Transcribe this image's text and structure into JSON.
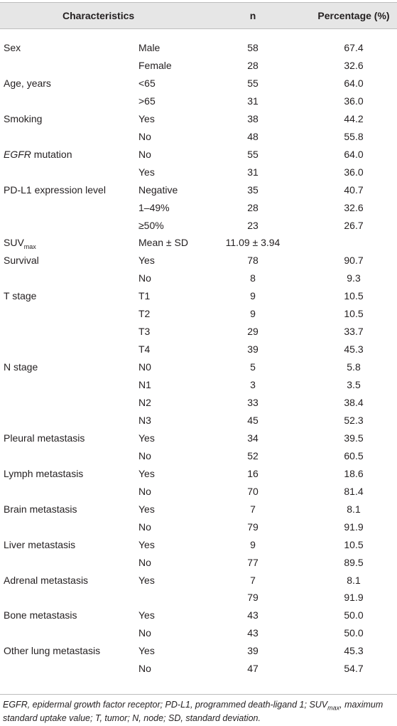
{
  "table": {
    "header": [
      "Characteristics",
      "n",
      "Percentage (%)"
    ],
    "rows": [
      {
        "characteristic": "Sex",
        "group": "Male",
        "n": "58",
        "pct": "67.4"
      },
      {
        "group": "Female",
        "n": "28",
        "pct": "32.6"
      },
      {
        "characteristic": "Age, years",
        "group": "<65",
        "n": "55",
        "pct": "64.0"
      },
      {
        "group": ">65",
        "n": "31",
        "pct": "36.0"
      },
      {
        "characteristic": "Smoking",
        "group": "Yes",
        "n": "38",
        "pct": "44.2"
      },
      {
        "group": "No",
        "n": "48",
        "pct": "55.8"
      },
      {
        "characteristic_em": "EGFR",
        "characteristic": "mutation",
        "group": "No",
        "n": "55",
        "pct": "64.0"
      },
      {
        "group": "Yes",
        "n": "31",
        "pct": "36.0"
      },
      {
        "characteristic": "PD-L1 expression level",
        "group": "Negative",
        "n": "35",
        "pct": "40.7"
      },
      {
        "group": "1–49%",
        "n": "28",
        "pct": "32.6"
      },
      {
        "group": "≥50%",
        "n": "23",
        "pct": "26.7"
      },
      {
        "characteristic": "SUV",
        "characteristic_sub": "max",
        "group": "Mean ± SD",
        "n": "11.09 ± 3.94"
      },
      {
        "characteristic": "Survival",
        "group": "Yes",
        "n": "78",
        "pct": "90.7"
      },
      {
        "group": "No",
        "n": "8",
        "pct": "9.3"
      },
      {
        "characteristic": "T stage",
        "group": "T1",
        "n": "9",
        "pct": "10.5"
      },
      {
        "group": "T2",
        "n": "9",
        "pct": "10.5"
      },
      {
        "group": "T3",
        "n": "29",
        "pct": "33.7"
      },
      {
        "group": "T4",
        "n": "39",
        "pct": "45.3"
      },
      {
        "characteristic": "N stage",
        "group": "N0",
        "n": "5",
        "pct": "5.8"
      },
      {
        "group": "N1",
        "n": "3",
        "pct": "3.5"
      },
      {
        "group": "N2",
        "n": "33",
        "pct": "38.4"
      },
      {
        "group": "N3",
        "n": "45",
        "pct": "52.3"
      },
      {
        "characteristic": "Pleural metastasis",
        "group": "Yes",
        "n": "34",
        "pct": "39.5"
      },
      {
        "group": "No",
        "n": "52",
        "pct": "60.5"
      },
      {
        "characteristic": "Lymph metastasis",
        "group": "Yes",
        "n": "16",
        "pct": "18.6"
      },
      {
        "group": "No",
        "n": "70",
        "pct": "81.4"
      },
      {
        "characteristic": "Brain metastasis",
        "group": "Yes",
        "n": "7",
        "pct": "8.1"
      },
      {
        "group": "No",
        "n": "79",
        "pct": "91.9"
      },
      {
        "characteristic": "Liver metastasis",
        "group": "Yes",
        "n": "9",
        "pct": "10.5"
      },
      {
        "group": "No",
        "n": "77",
        "pct": "89.5"
      },
      {
        "characteristic": "Adrenal metastasis",
        "group": "Yes",
        "n": "7",
        "pct": "8.1"
      },
      {
        "n": "79",
        "pct": "91.9"
      },
      {
        "characteristic": "Bone metastasis",
        "group": "Yes",
        "n": "43",
        "pct": "50.0"
      },
      {
        "group": "No",
        "n": "43",
        "pct": "50.0"
      },
      {
        "characteristic": "Other lung metastasis",
        "group": "Yes",
        "n": "39",
        "pct": "45.3"
      },
      {
        "group": "No",
        "n": "47",
        "pct": "54.7"
      }
    ],
    "footnote": [
      "EGFR, epidermal growth factor receptor; PD-L1, programmed death-ligand 1; SUV",
      "max",
      ", maximum standard uptake value; T, tumor; N, node; SD, standard deviation."
    ]
  }
}
